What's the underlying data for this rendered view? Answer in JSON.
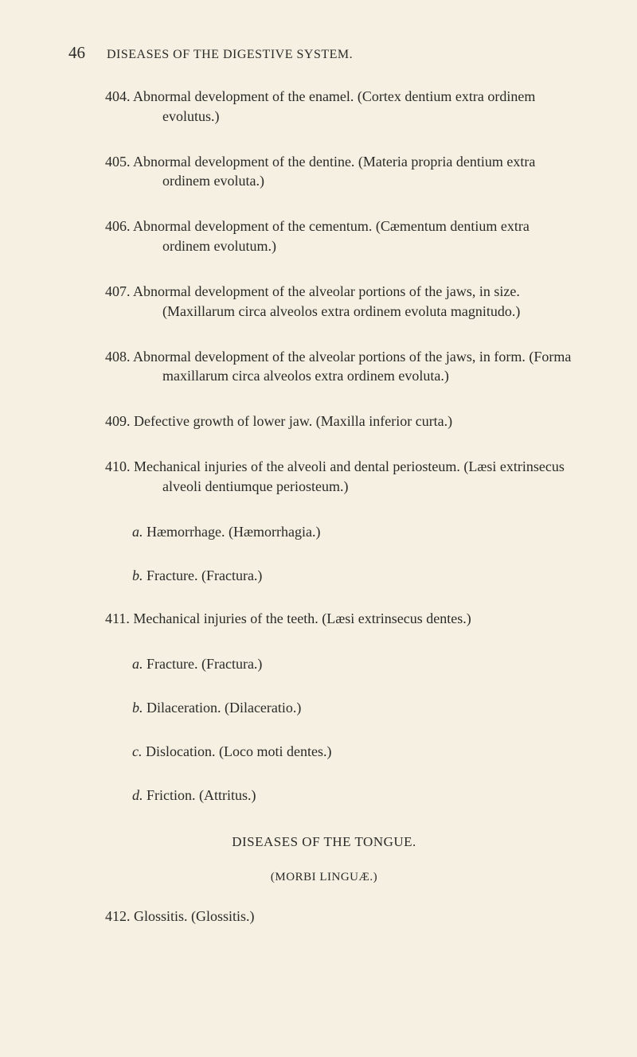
{
  "page_number": "46",
  "running_head": "DISEASES OF THE DIGESTIVE SYSTEM.",
  "entries": [
    {
      "num": "404.",
      "text": "Abnormal development of the enamel. (Cortex dentium extra ordinem evolutus.)"
    },
    {
      "num": "405.",
      "text": "Abnormal development of the dentine. (Materia propria dentium extra ordinem evoluta.)"
    },
    {
      "num": "406.",
      "text": "Abnormal development of the cementum. (Cæmentum dentium extra ordinem evolutum.)"
    },
    {
      "num": "407.",
      "text": "Abnormal development of the alveolar portions of the jaws, in size. (Maxillarum circa alveolos extra ordinem evoluta magnitudo.)"
    },
    {
      "num": "408.",
      "text": "Abnormal development of the alveolar portions of the jaws, in form. (Forma maxillarum circa alveolos extra ordinem evoluta.)"
    },
    {
      "num": "409.",
      "text": "Defective growth of lower jaw. (Maxilla inferior curta.)"
    },
    {
      "num": "410.",
      "text": "Mechanical injuries of the alveoli and dental periosteum. (Læsi extrinsecus alveoli dentiumque periosteum.)"
    }
  ],
  "subs410": [
    {
      "letter": "a.",
      "text": "Hæmorrhage. (Hæmorrhagia.)"
    },
    {
      "letter": "b.",
      "text": "Fracture. (Fractura.)"
    }
  ],
  "entry411": {
    "num": "411.",
    "text": "Mechanical injuries of the teeth. (Læsi extrinsecus dentes.)"
  },
  "subs411": [
    {
      "letter": "a.",
      "text": "Fracture. (Fractura.)"
    },
    {
      "letter": "b.",
      "text": "Dilaceration. (Dilaceratio.)"
    },
    {
      "letter": "c.",
      "text": "Dislocation. (Loco moti dentes.)"
    },
    {
      "letter": "d.",
      "text": "Friction. (Attritus.)"
    }
  ],
  "section_title": "DISEASES OF THE TONGUE.",
  "section_sub": "(MORBI LINGUÆ.)",
  "entry412": {
    "num": "412.",
    "text": "Glossitis. (Glossitis.)"
  }
}
